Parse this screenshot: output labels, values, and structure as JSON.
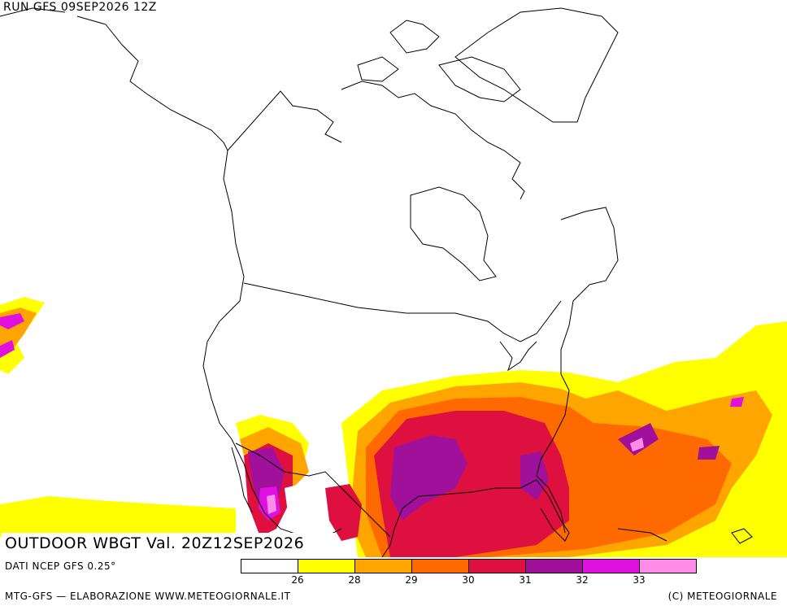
{
  "header": {
    "run_title": "RUN GFS 09SEP2026 12Z"
  },
  "map": {
    "product_title": "OUTDOOR WBGT Val. 20Z12SEP2026",
    "data_source": "DATI NCEP GFS 0.25°"
  },
  "legend": {
    "colors": [
      "#ffffff",
      "#ffff00",
      "#ffa500",
      "#ff6a00",
      "#dd1040",
      "#a0109a",
      "#e010e0",
      "#ff8ce8"
    ],
    "ticks": [
      "26",
      "28",
      "29",
      "30",
      "31",
      "32",
      "33"
    ]
  },
  "footer": {
    "left": "MTG-GFS — ELABORAZIONE WWW.METEOGIORNALE.IT",
    "right": "(C) METEOGIORNALE"
  }
}
